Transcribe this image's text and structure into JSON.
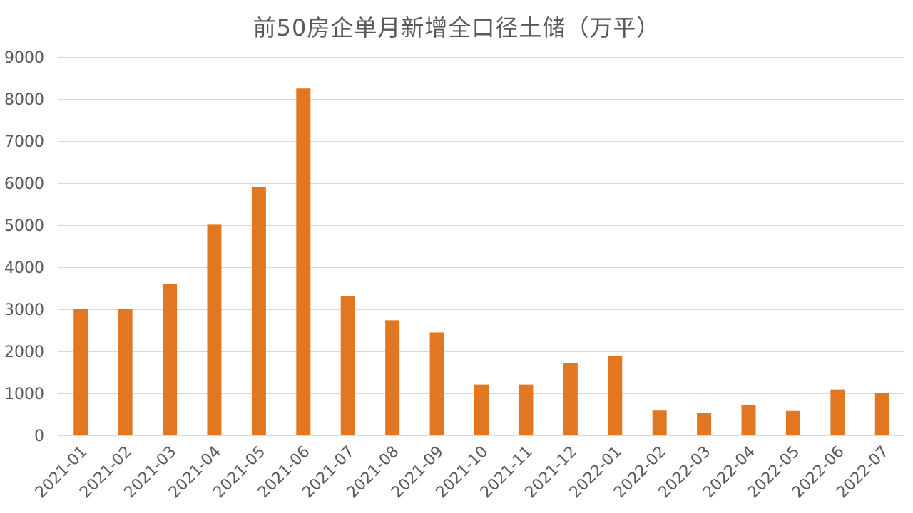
{
  "chart_data": {
    "type": "bar",
    "title": "前50房企单月新增全口径土储（万平）",
    "xlabel": "",
    "ylabel": "",
    "categories": [
      "2021-01",
      "2021-02",
      "2021-03",
      "2021-04",
      "2021-05",
      "2021-06",
      "2021-07",
      "2021-08",
      "2021-09",
      "2021-10",
      "2021-11",
      "2021-12",
      "2022-01",
      "2022-02",
      "2022-03",
      "2022-04",
      "2022-05",
      "2022-06",
      "2022-07"
    ],
    "values": [
      3000,
      3010,
      3600,
      5010,
      5900,
      8250,
      3320,
      2740,
      2450,
      1210,
      1210,
      1720,
      1890,
      590,
      530,
      720,
      580,
      1090,
      1010
    ],
    "ylim": [
      0,
      9000
    ],
    "yticks": [
      0,
      1000,
      2000,
      3000,
      4000,
      5000,
      6000,
      7000,
      8000,
      9000
    ],
    "grid": true,
    "legend": "none",
    "bar_color": "#E27722",
    "grid_color": "#D9D9D9",
    "text_color": "#595959"
  }
}
